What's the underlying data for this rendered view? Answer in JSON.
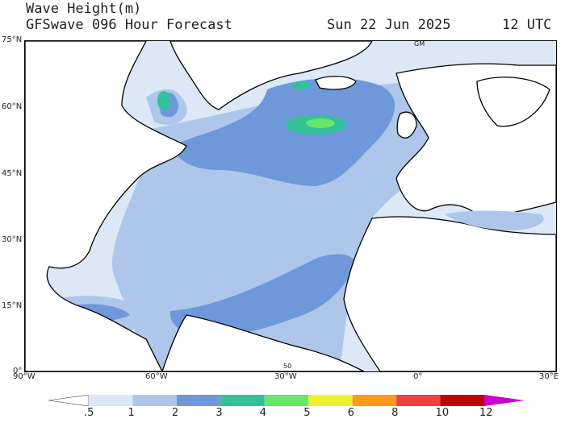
{
  "title": {
    "line1": "Wave Height(m)",
    "line2": "GFSwave 096 Hour Forecast",
    "date": "Sun 22 Jun 2025",
    "time": "12 UTC"
  },
  "map": {
    "lat_labels": [
      "75°N",
      "60°N",
      "45°N",
      "30°N",
      "15°N",
      "0°"
    ],
    "lon_labels": [
      "90°W",
      "60°W",
      "30°W",
      "0°",
      "30°E"
    ],
    "gridline_markers": [
      "GM",
      "50"
    ]
  },
  "legend": {
    "labels": [
      ".5",
      "1",
      "2",
      "3",
      "4",
      "5",
      "6",
      "8",
      "10",
      "12"
    ],
    "colors": [
      "#ffffff",
      "#dce8f6",
      "#aec6ea",
      "#6f98da",
      "#33c19a",
      "#66e866",
      "#f0f032",
      "#ff9a1e",
      "#f04040",
      "#c00000",
      "#cc00cc"
    ]
  }
}
